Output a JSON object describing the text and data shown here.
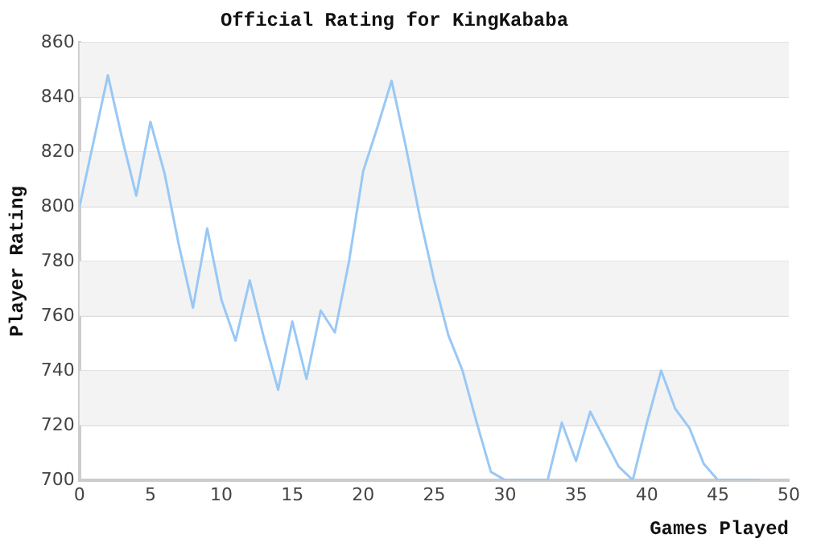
{
  "chart_data": {
    "type": "line",
    "title": "Official Rating for KingKababa",
    "xlabel": "Games Played",
    "ylabel": "Player Rating",
    "x": [
      0,
      1,
      2,
      3,
      4,
      5,
      6,
      7,
      8,
      9,
      10,
      11,
      12,
      13,
      14,
      15,
      16,
      17,
      18,
      19,
      20,
      21,
      22,
      23,
      24,
      25,
      26,
      27,
      28,
      29,
      30,
      31,
      32,
      33,
      34,
      35,
      36,
      37,
      38,
      39,
      40,
      41,
      42,
      43,
      44,
      45,
      46,
      47,
      48
    ],
    "series": [
      {
        "color": "#99c8f5",
        "values": [
          800,
          824,
          848,
          825,
          804,
          831,
          812,
          786,
          763,
          792,
          766,
          751,
          773,
          752,
          733,
          758,
          737,
          762,
          754,
          780,
          813,
          829,
          846,
          822,
          796,
          773,
          753,
          740,
          721,
          703,
          700,
          700,
          700,
          700,
          721,
          707,
          725,
          715,
          705,
          700,
          721,
          740,
          726,
          719,
          706,
          700,
          700,
          700,
          700
        ]
      }
    ],
    "xlim": [
      0,
      50
    ],
    "xticks": [
      0,
      5,
      10,
      15,
      20,
      25,
      30,
      35,
      40,
      45,
      50
    ],
    "ylim": [
      700,
      860
    ],
    "yticks": [
      700,
      720,
      740,
      760,
      780,
      800,
      820,
      840,
      860
    ],
    "grid": "y",
    "marker": "none",
    "line_style": "solid",
    "legend": false
  }
}
